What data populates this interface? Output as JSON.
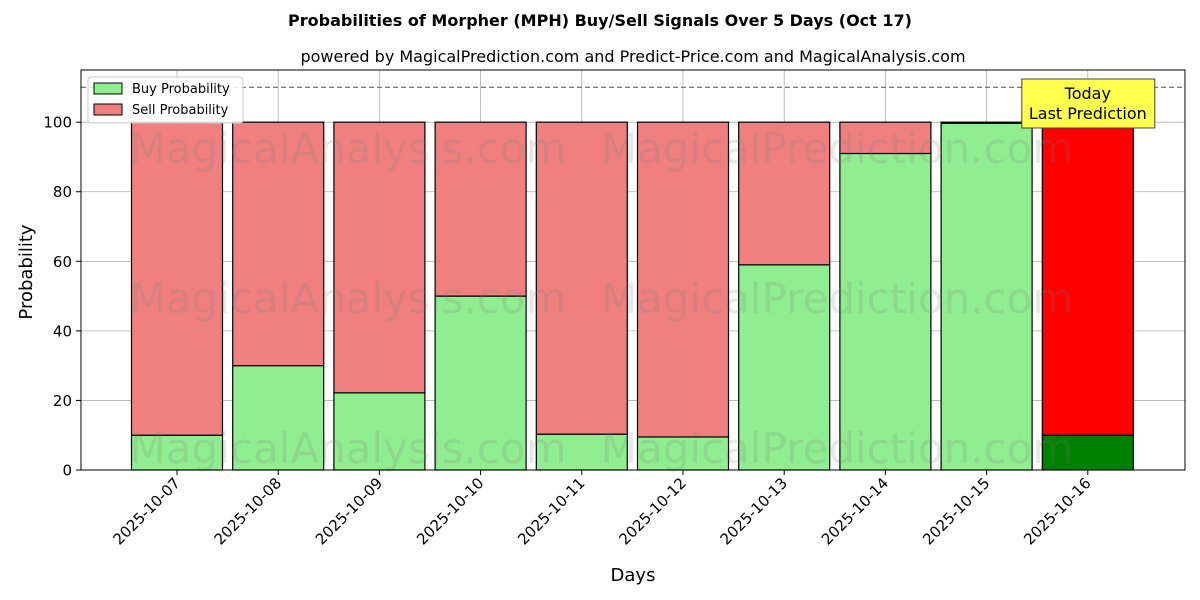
{
  "chart_data": {
    "type": "bar",
    "stacked": true,
    "title": "Probabilities of Morpher (MPH) Buy/Sell Signals Over 5 Days (Oct 17)",
    "subtitle": "powered by MagicalPrediction.com and Predict-Price.com and MagicalAnalysis.com",
    "xlabel": "Days",
    "ylabel": "Probability",
    "ylim": [
      0,
      115
    ],
    "yticks": [
      0,
      20,
      40,
      60,
      80,
      100
    ],
    "grid": true,
    "legend_position": "top-left",
    "reference_line": {
      "y": 110,
      "style": "dashed"
    },
    "categories": [
      "2025-10-07",
      "2025-10-08",
      "2025-10-09",
      "2025-10-10",
      "2025-10-11",
      "2025-10-12",
      "2025-10-13",
      "2025-10-14",
      "2025-10-15",
      "2025-10-16"
    ],
    "series": [
      {
        "name": "Buy Probability",
        "color": "#90ee90",
        "values": [
          10,
          30,
          22.2,
          50,
          10.3,
          9.5,
          59,
          91,
          99.7,
          10
        ]
      },
      {
        "name": "Sell Probability",
        "color": "#f08080",
        "values": [
          90,
          70,
          77.8,
          50,
          89.7,
          90.5,
          41,
          9,
          0.3,
          90
        ]
      }
    ],
    "highlight": {
      "index": 9,
      "buy_color": "#008000",
      "sell_color": "#ff0000"
    },
    "annotation": {
      "lines": [
        "Today",
        "Last Prediction"
      ],
      "bg_color": "#ffff4d",
      "category_index": 9
    },
    "watermarks": [
      "MagicalAnalysis.com",
      "MagicalPrediction.com",
      "MagicalAnalysis.com",
      "MagicalPrediction.com",
      "MagicalAnalysis.com",
      "MagicalPrediction.com"
    ]
  }
}
